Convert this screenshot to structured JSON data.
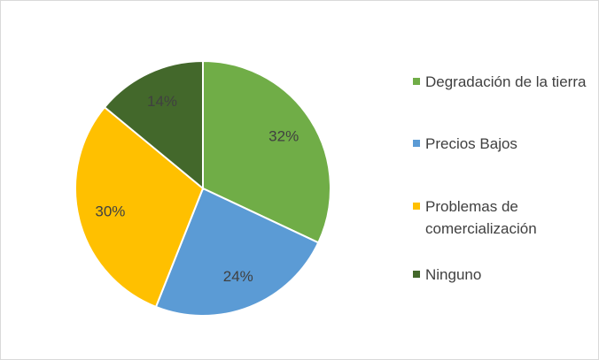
{
  "chart_data": {
    "type": "pie",
    "categories": [
      "Degradación de la tierra",
      "Precios Bajos",
      "Problemas de comercialización",
      "Ninguno"
    ],
    "values": [
      32,
      24,
      30,
      14
    ],
    "value_labels": [
      "32%",
      "24%",
      "30%",
      "14%"
    ],
    "colors": [
      "#70ad47",
      "#5b9bd5",
      "#ffc000",
      "#43682b"
    ],
    "legend": "right"
  }
}
